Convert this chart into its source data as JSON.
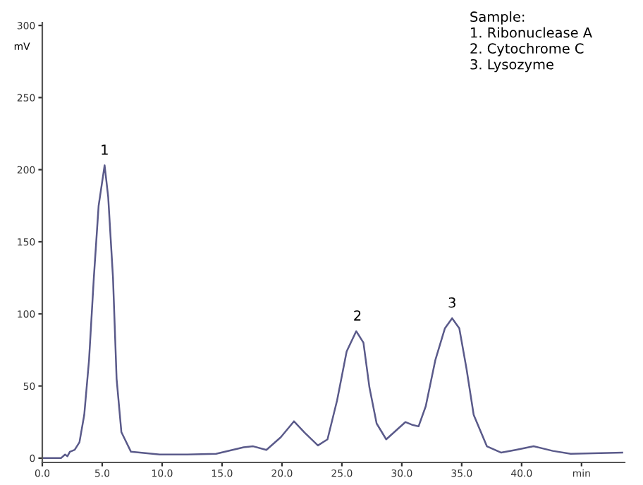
{
  "chart_data": {
    "type": "line",
    "x": [
      0,
      1.56,
      1.9,
      2.1,
      2.3,
      2.7,
      3.1,
      3.5,
      3.9,
      4.3,
      4.7,
      5.2,
      5.5,
      5.9,
      6.2,
      6.6,
      7.4,
      9.8,
      12.1,
      14.5,
      16.8,
      17.6,
      18.7,
      19.9,
      21.0,
      21.9,
      23.0,
      23.8,
      24.6,
      25.4,
      26.2,
      26.8,
      27.3,
      27.9,
      28.7,
      29.5,
      30.3,
      30.9,
      31.4,
      32.0,
      32.8,
      33.6,
      34.2,
      34.8,
      35.4,
      36.0,
      37.1,
      38.3,
      39.5,
      41.0,
      42.6,
      44.1,
      48.4
    ],
    "series": [
      {
        "color": "#5a5a8a",
        "values": [
          0,
          0,
          2.5,
          1.3,
          4.4,
          5.7,
          11,
          30,
          68,
          125,
          175,
          203,
          181,
          125,
          55,
          18,
          4.4,
          2.5,
          2.5,
          3,
          7.5,
          8.2,
          5.7,
          14.5,
          25.5,
          17.6,
          8.8,
          13,
          40,
          74,
          88,
          80,
          49,
          24,
          13,
          19,
          25,
          23,
          22,
          36,
          68,
          90,
          97,
          90,
          62,
          30,
          8.2,
          3.8,
          5.7,
          8.2,
          5,
          3,
          3.8
        ]
      }
    ],
    "xlim": [
      0,
      48.6
    ],
    "ylim": [
      -3,
      302
    ],
    "xticks": [
      {
        "value": 0,
        "label": "0.0"
      },
      {
        "value": 5,
        "label": "5.0"
      },
      {
        "value": 10,
        "label": "10.0"
      },
      {
        "value": 15,
        "label": "15.0"
      },
      {
        "value": 20,
        "label": "20.0"
      },
      {
        "value": 25,
        "label": "25.0"
      },
      {
        "value": 30,
        "label": "30.0"
      },
      {
        "value": 35,
        "label": "35.0"
      },
      {
        "value": 40,
        "label": "40.0"
      },
      {
        "value": 45,
        "label": "min"
      }
    ],
    "yticks": [
      0,
      50,
      100,
      150,
      200,
      250,
      300
    ],
    "ylabel": "mV",
    "annotations": [
      {
        "text": "1",
        "x": 5.2,
        "y": 203
      },
      {
        "text": "2",
        "x": 26.3,
        "y": 88
      },
      {
        "text": "3",
        "x": 34.2,
        "y": 97
      },
      "Sample:\n1. Ribonuclease A\n2. Cytochrome C\n3. Lysozyme"
    ],
    "grid": false,
    "legend": false,
    "marker": "none",
    "line_style": "solid"
  }
}
